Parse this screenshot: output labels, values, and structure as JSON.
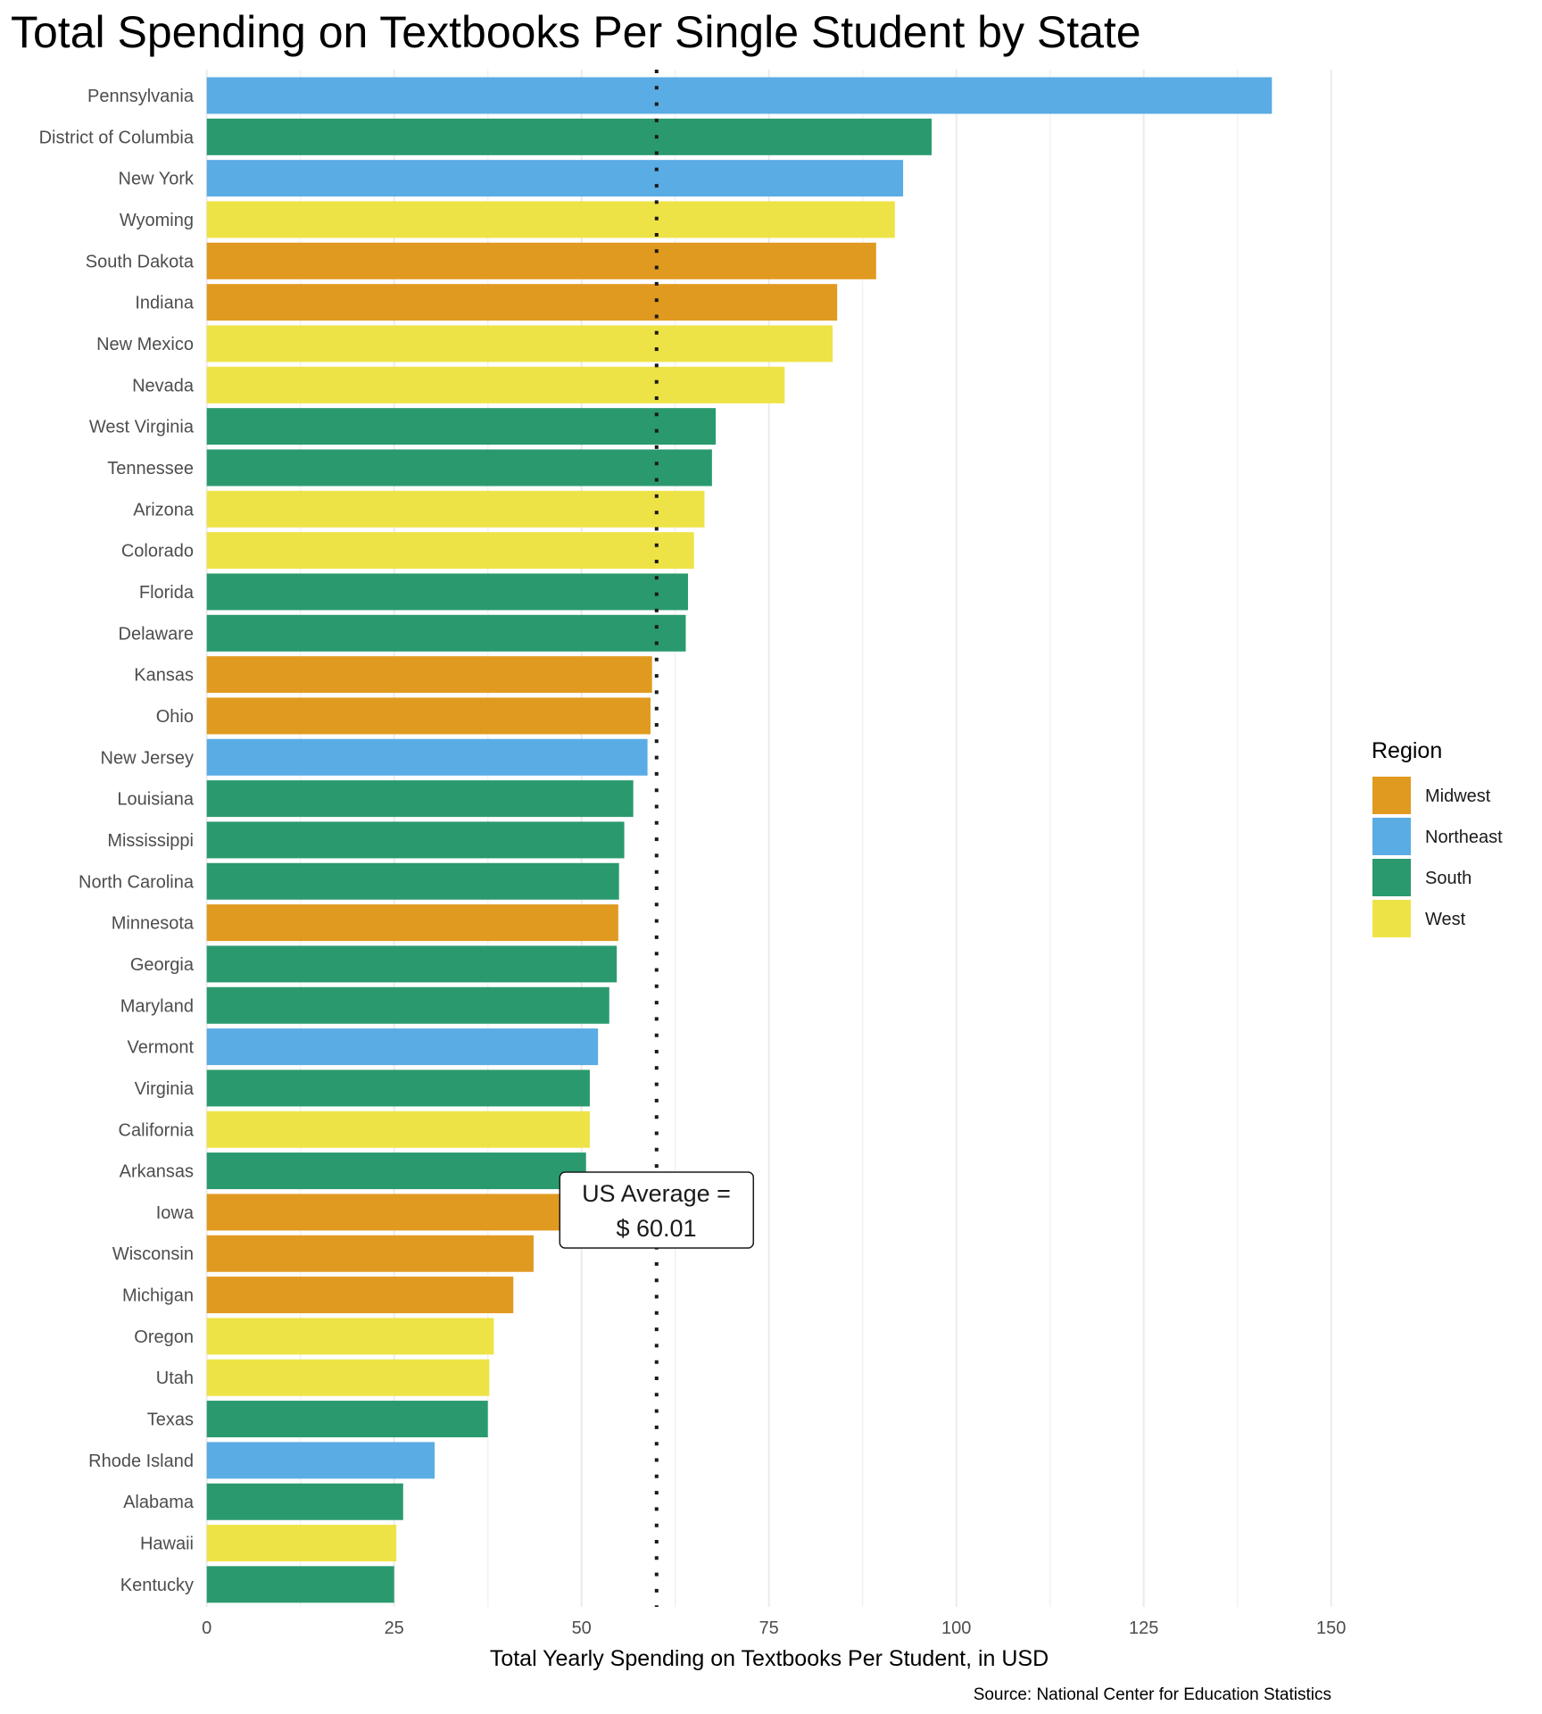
{
  "chart_data": {
    "type": "bar",
    "orientation": "horizontal",
    "title": "Total Spending on Textbooks Per Single Student by State",
    "xlabel": "Total Yearly Spending on Textbooks Per Student, in USD",
    "ylabel": "",
    "caption": "Source: National Center for Education Statistics",
    "xlim": [
      0,
      150
    ],
    "xticks": [
      0,
      25,
      50,
      75,
      100,
      125,
      150
    ],
    "xtick_labels": [
      "0",
      "25",
      "50",
      "75",
      "100",
      "125",
      "150"
    ],
    "grid": true,
    "legend": {
      "title": "Region",
      "placement": "right",
      "entries": [
        {
          "name": "Midwest",
          "color": "#E19A20"
        },
        {
          "name": "Northeast",
          "color": "#5AACE4"
        },
        {
          "name": "South",
          "color": "#2A9A6E"
        },
        {
          "name": "West",
          "color": "#EEE346"
        }
      ]
    },
    "reference_line": {
      "value": 60.01,
      "style": "dotted",
      "label_line1": "US Average =",
      "label_line2": "$ 60.01"
    },
    "bars": [
      {
        "state": "Pennsylvania",
        "region": "Northeast",
        "value": 142.1
      },
      {
        "state": "District of Columbia",
        "region": "South",
        "value": 96.7
      },
      {
        "state": "New York",
        "region": "Northeast",
        "value": 92.9
      },
      {
        "state": "Wyoming",
        "region": "West",
        "value": 91.8
      },
      {
        "state": "South Dakota",
        "region": "Midwest",
        "value": 89.3
      },
      {
        "state": "Indiana",
        "region": "Midwest",
        "value": 84.1
      },
      {
        "state": "New Mexico",
        "region": "West",
        "value": 83.5
      },
      {
        "state": "Nevada",
        "region": "West",
        "value": 77.1
      },
      {
        "state": "West Virginia",
        "region": "South",
        "value": 67.9
      },
      {
        "state": "Tennessee",
        "region": "South",
        "value": 67.4
      },
      {
        "state": "Arizona",
        "region": "West",
        "value": 66.4
      },
      {
        "state": "Colorado",
        "region": "West",
        "value": 65.0
      },
      {
        "state": "Florida",
        "region": "South",
        "value": 64.2
      },
      {
        "state": "Delaware",
        "region": "South",
        "value": 63.9
      },
      {
        "state": "Kansas",
        "region": "Midwest",
        "value": 59.4
      },
      {
        "state": "Ohio",
        "region": "Midwest",
        "value": 59.2
      },
      {
        "state": "New Jersey",
        "region": "Northeast",
        "value": 58.8
      },
      {
        "state": "Louisiana",
        "region": "South",
        "value": 56.9
      },
      {
        "state": "Mississippi",
        "region": "South",
        "value": 55.7
      },
      {
        "state": "North Carolina",
        "region": "South",
        "value": 55.0
      },
      {
        "state": "Minnesota",
        "region": "Midwest",
        "value": 54.9
      },
      {
        "state": "Georgia",
        "region": "South",
        "value": 54.7
      },
      {
        "state": "Maryland",
        "region": "South",
        "value": 53.7
      },
      {
        "state": "Vermont",
        "region": "Northeast",
        "value": 52.2
      },
      {
        "state": "Virginia",
        "region": "South",
        "value": 51.1
      },
      {
        "state": "California",
        "region": "West",
        "value": 51.1
      },
      {
        "state": "Arkansas",
        "region": "South",
        "value": 50.6
      },
      {
        "state": "Iowa",
        "region": "Midwest",
        "value": 48.0
      },
      {
        "state": "Wisconsin",
        "region": "Midwest",
        "value": 43.6
      },
      {
        "state": "Michigan",
        "region": "Midwest",
        "value": 40.9
      },
      {
        "state": "Oregon",
        "region": "West",
        "value": 38.3
      },
      {
        "state": "Utah",
        "region": "West",
        "value": 37.7
      },
      {
        "state": "Texas",
        "region": "South",
        "value": 37.5
      },
      {
        "state": "Rhode Island",
        "region": "Northeast",
        "value": 30.4
      },
      {
        "state": "Alabama",
        "region": "South",
        "value": 26.2
      },
      {
        "state": "Hawaii",
        "region": "West",
        "value": 25.3
      },
      {
        "state": "Kentucky",
        "region": "South",
        "value": 25.0
      }
    ]
  }
}
